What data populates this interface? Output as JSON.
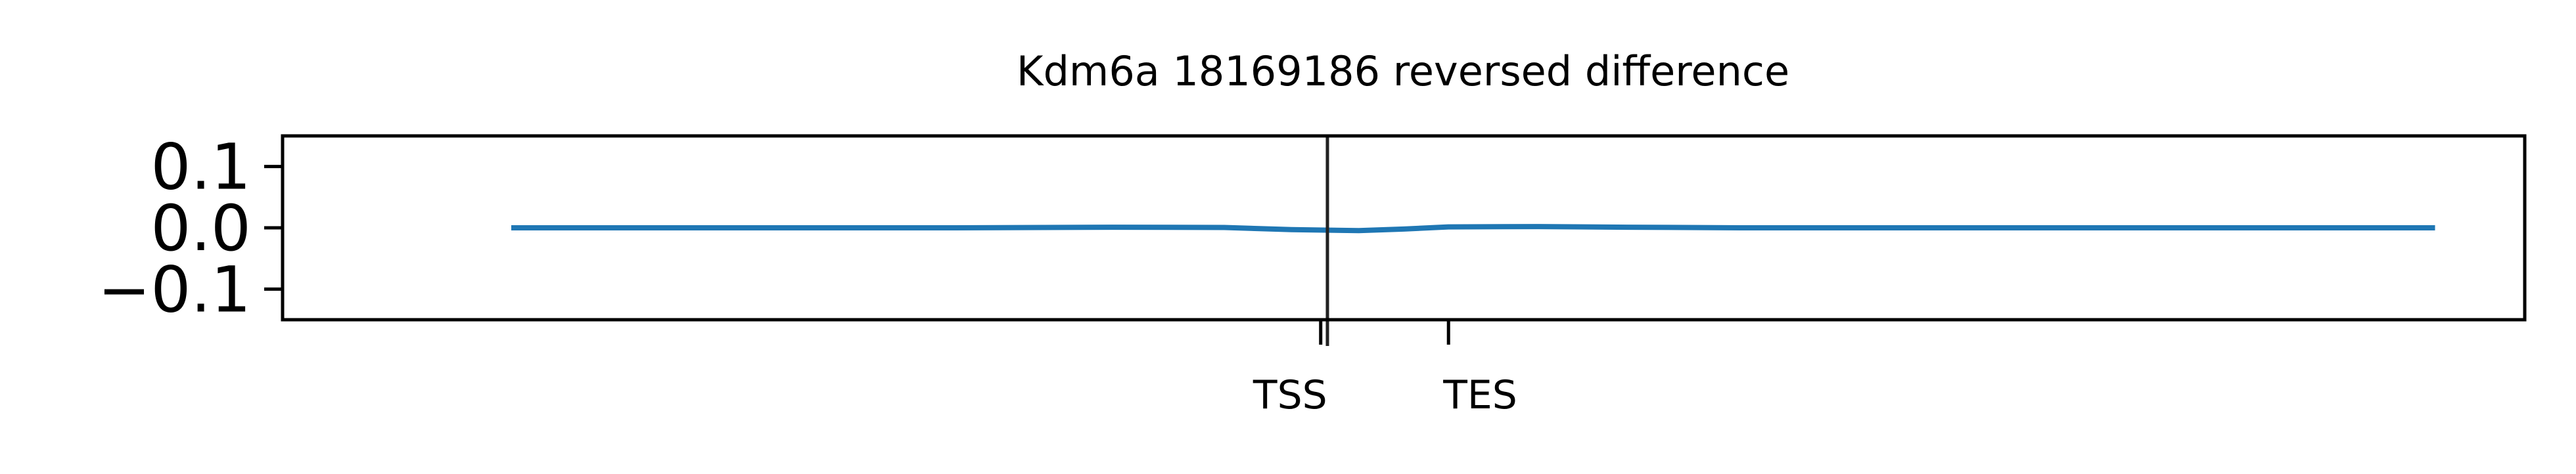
{
  "chart_data": {
    "type": "line",
    "title": "Kdm6a 18169186 reversed difference",
    "xlabel": "",
    "ylabel": "",
    "xlim": [
      0,
      1000
    ],
    "ylim": [
      -0.15,
      0.15
    ],
    "grid": false,
    "y_ticks": [
      {
        "value": 0.1,
        "label": "0.1"
      },
      {
        "value": 0.0,
        "label": "0.0"
      },
      {
        "value": -0.1,
        "label": "−0.1"
      }
    ],
    "x_ticks": [
      {
        "value": 463,
        "label": "TSS"
      },
      {
        "value": 520,
        "label": "TES"
      }
    ],
    "vline": {
      "x": 466,
      "color": "#222222"
    },
    "series": [
      {
        "color": "#1f77b4",
        "x": [
          102,
          200,
          300,
          370,
          420,
          450,
          480,
          500,
          520,
          560,
          600,
          650,
          700,
          800,
          900,
          960
        ],
        "y": [
          0.0,
          0.0,
          0.0,
          0.001,
          0.0005,
          -0.003,
          -0.0045,
          -0.002,
          0.0015,
          0.002,
          0.001,
          0.0,
          0.0,
          0.0,
          0.0,
          0.0
        ]
      }
    ]
  }
}
